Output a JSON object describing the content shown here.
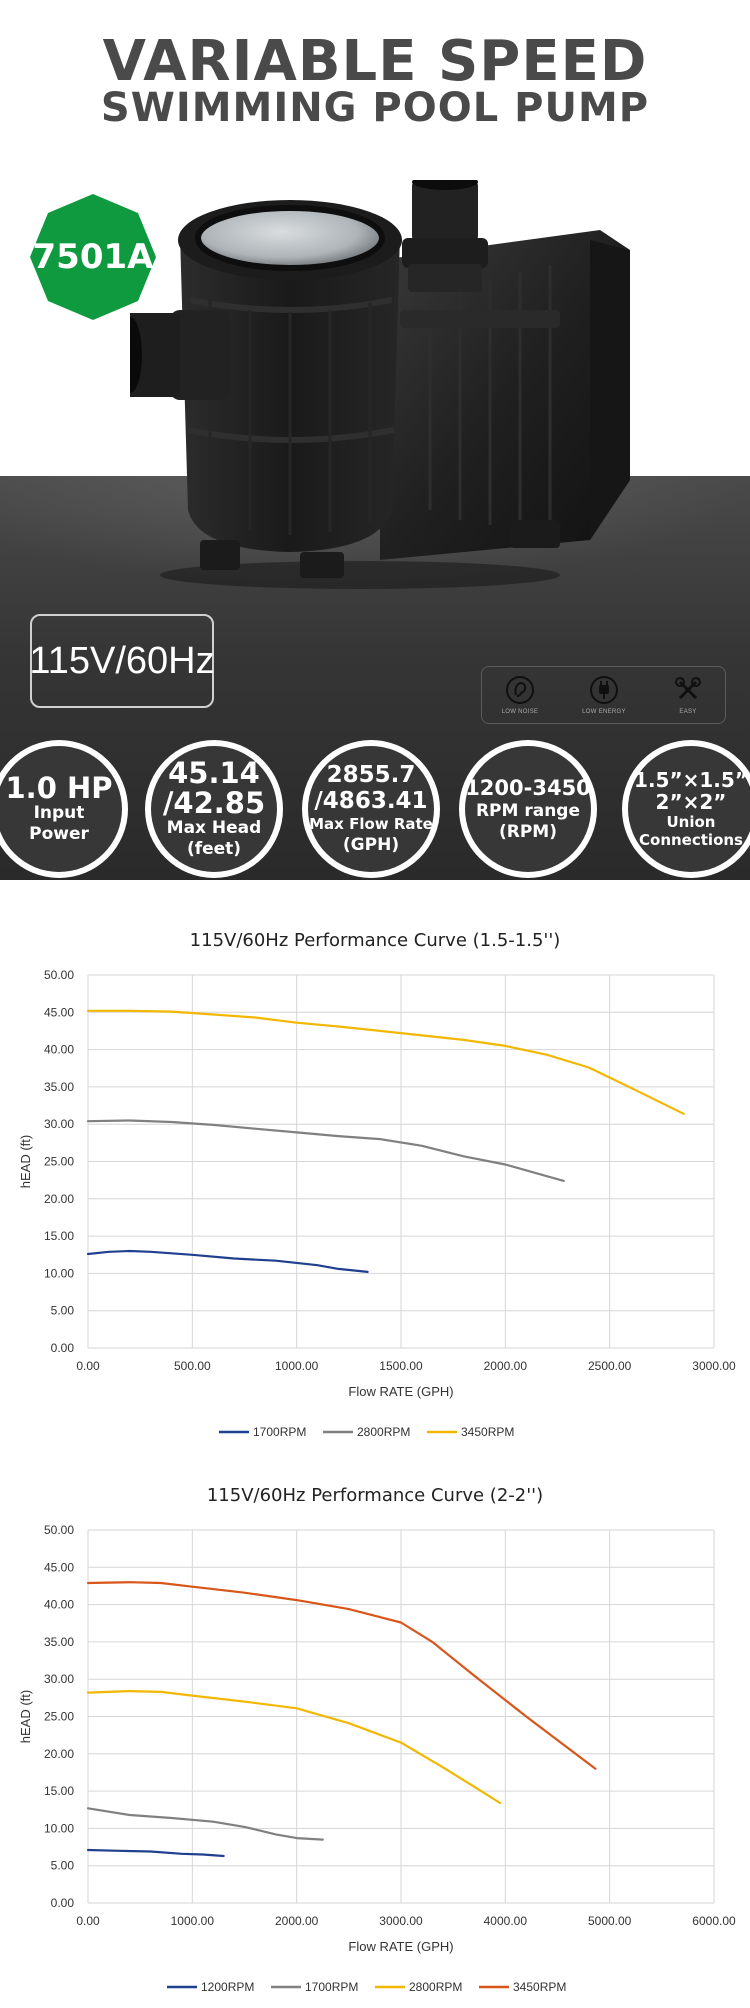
{
  "header": {
    "title_line1": "VARIABLE SPEED",
    "title_line2": "SWIMMING POOL PUMP"
  },
  "model_badge": {
    "text": "7501A",
    "color": "#0f9a3f"
  },
  "voltage_label": "115V/60Hz",
  "features": [
    {
      "icon": "ear-icon",
      "label": "LOW NOISE"
    },
    {
      "icon": "power-plug-icon",
      "label": "LOW ENERGY"
    },
    {
      "icon": "tools-icon",
      "label": "EASY"
    }
  ],
  "specs": [
    {
      "value": "1.0 HP",
      "label_1": "Input",
      "label_2": "Power"
    },
    {
      "value_1": "45.14",
      "value_2": "/42.85",
      "label_1": "Max Head",
      "label_2": "(feet)"
    },
    {
      "value_1": "2855.7",
      "value_2": "/4863.41",
      "label_1": "Max Flow Rate",
      "label_2": "(GPH)"
    },
    {
      "value": "1200-3450",
      "label_1": "RPM range",
      "label_2": "(RPM)"
    },
    {
      "value_1": "1.5”×1.5”",
      "value_2": "2”×2”",
      "label_1": "Union",
      "label_2": "Connections"
    }
  ],
  "chart_data": [
    {
      "type": "line",
      "title": "115V/60Hz Performance Curve  (1.5-1.5'')",
      "xlabel": "Flow RATE (GPH)",
      "ylabel": "hEAD (ft)",
      "xlim": [
        0,
        3000
      ],
      "ylim": [
        0,
        50
      ],
      "x_ticks": [
        "0.00",
        "500.00",
        "1000.00",
        "1500.00",
        "2000.00",
        "2500.00",
        "3000.00"
      ],
      "y_ticks": [
        "0.00",
        "5.00",
        "10.00",
        "15.00",
        "20.00",
        "25.00",
        "30.00",
        "35.00",
        "40.00",
        "45.00",
        "50.00"
      ],
      "grid": true,
      "legend": "bottom",
      "series": [
        {
          "name": "1700RPM",
          "color": "#1f3f8f",
          "x": [
            0,
            100,
            200,
            300,
            500,
            700,
            900,
            1100,
            1200,
            1340
          ],
          "y": [
            12.6,
            12.9,
            13.0,
            12.9,
            12.5,
            12.0,
            11.7,
            11.1,
            10.6,
            10.2
          ]
        },
        {
          "name": "2800RPM",
          "color": "#808080",
          "x": [
            0,
            200,
            400,
            600,
            800,
            1000,
            1200,
            1400,
            1600,
            1800,
            2000,
            2280
          ],
          "y": [
            30.4,
            30.5,
            30.3,
            29.9,
            29.4,
            28.9,
            28.4,
            28.0,
            27.1,
            25.7,
            24.6,
            22.4
          ]
        },
        {
          "name": "3450RPM",
          "color": "#f2b700",
          "x": [
            0,
            200,
            400,
            600,
            800,
            1000,
            1200,
            1400,
            1600,
            1800,
            2000,
            2200,
            2400,
            2600,
            2855
          ],
          "y": [
            45.2,
            45.2,
            45.1,
            44.7,
            44.3,
            43.6,
            43.1,
            42.5,
            41.9,
            41.3,
            40.5,
            39.3,
            37.6,
            34.9,
            31.4
          ]
        }
      ]
    },
    {
      "type": "line",
      "title": "115V/60Hz Performance Curve  (2-2'')",
      "xlabel": "Flow RATE (GPH)",
      "ylabel": "hEAD (ft)",
      "xlim": [
        0,
        6000
      ],
      "ylim": [
        0,
        50
      ],
      "x_ticks": [
        "0.00",
        "1000.00",
        "2000.00",
        "3000.00",
        "4000.00",
        "5000.00",
        "6000.00"
      ],
      "y_ticks": [
        "0.00",
        "5.00",
        "10.00",
        "15.00",
        "20.00",
        "25.00",
        "30.00",
        "35.00",
        "40.00",
        "45.00",
        "50.00"
      ],
      "grid": true,
      "legend": "bottom",
      "series": [
        {
          "name": "1200RPM",
          "color": "#1f3f8f",
          "x": [
            0,
            300,
            600,
            900,
            1100,
            1300
          ],
          "y": [
            7.1,
            7.0,
            6.9,
            6.6,
            6.5,
            6.3
          ]
        },
        {
          "name": "1700RPM",
          "color": "#808080",
          "x": [
            0,
            400,
            800,
            1200,
            1500,
            1800,
            2000,
            2250
          ],
          "y": [
            12.7,
            11.8,
            11.4,
            10.9,
            10.2,
            9.2,
            8.7,
            8.5
          ]
        },
        {
          "name": "2800RPM",
          "color": "#f2b700",
          "x": [
            0,
            400,
            700,
            1000,
            1500,
            2000,
            2500,
            3000,
            3400,
            3700,
            3950
          ],
          "y": [
            28.2,
            28.4,
            28.3,
            27.8,
            27.0,
            26.1,
            24.1,
            21.5,
            18.2,
            15.6,
            13.4
          ]
        },
        {
          "name": "3450RPM",
          "color": "#d8561a",
          "x": [
            0,
            400,
            700,
            1000,
            1500,
            2000,
            2500,
            3000,
            3300,
            3700,
            4200,
            4863
          ],
          "y": [
            42.9,
            43.0,
            42.9,
            42.4,
            41.6,
            40.6,
            39.4,
            37.6,
            35.0,
            30.5,
            25.0,
            18.0
          ]
        }
      ]
    }
  ]
}
